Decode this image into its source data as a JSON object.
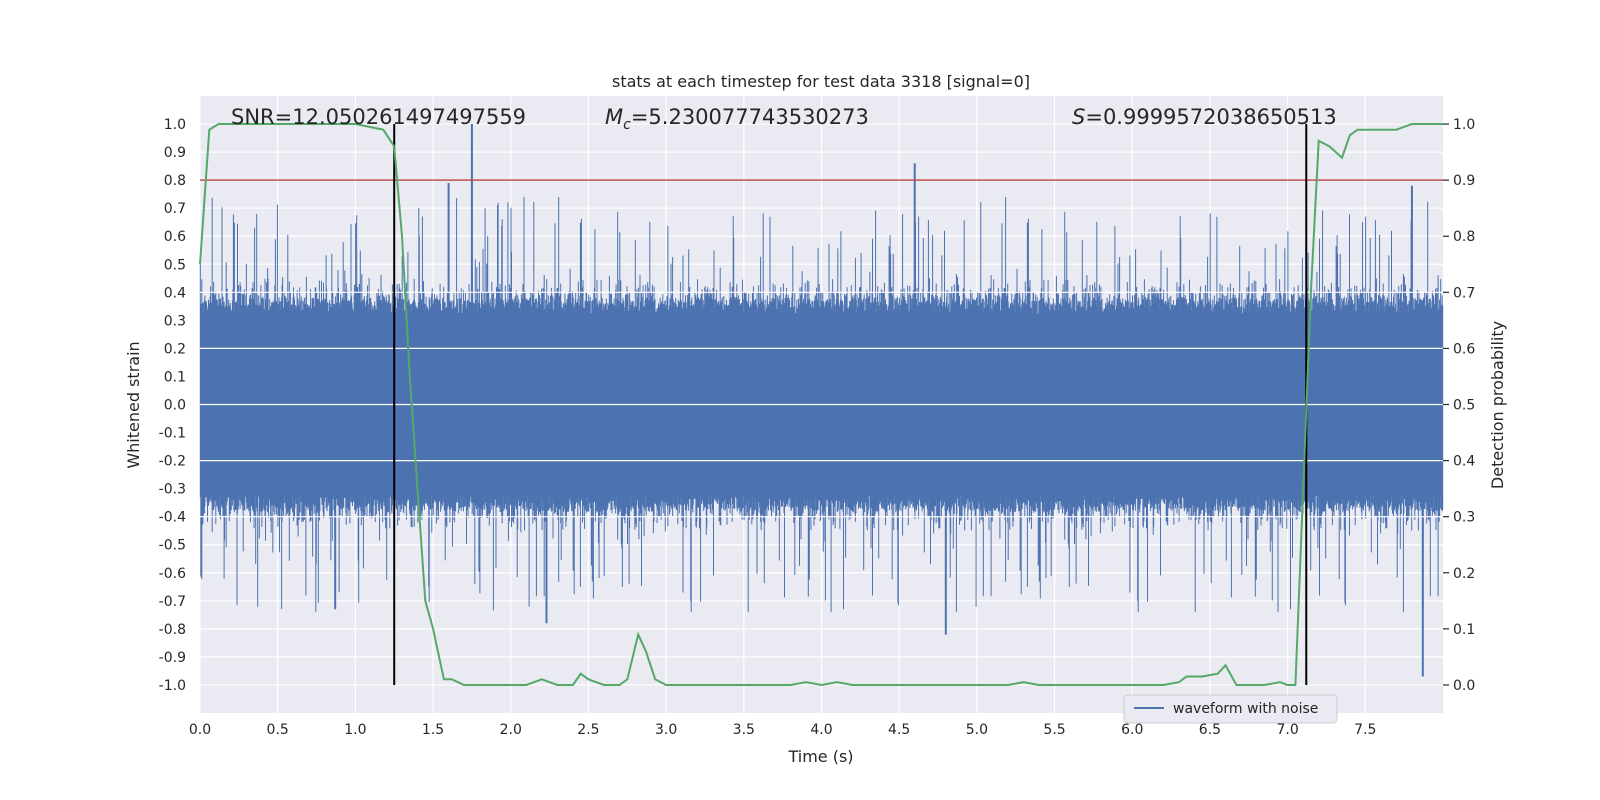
{
  "chart_data": {
    "type": "line",
    "title": "stats at each timestep for test data 3318 [signal=0]",
    "xlabel": "Time (s)",
    "ylabel": "Whitened strain",
    "y2label": "Detection probability",
    "xlim": [
      0.0,
      8.0
    ],
    "ylim": [
      -1.1,
      1.1
    ],
    "y2lim": [
      -0.05,
      1.05
    ],
    "xticks": [
      "0.0",
      "0.5",
      "1.0",
      "1.5",
      "2.0",
      "2.5",
      "3.0",
      "3.5",
      "4.0",
      "4.5",
      "5.0",
      "5.5",
      "6.0",
      "6.5",
      "7.0",
      "7.5"
    ],
    "yticks": [
      "1.0",
      "0.9",
      "0.8",
      "0.7",
      "0.6",
      "0.5",
      "0.4",
      "0.3",
      "0.2",
      "0.1",
      "0.0",
      "-0.1",
      "-0.2",
      "-0.3",
      "-0.4",
      "-0.5",
      "-0.6",
      "-0.7",
      "-0.8",
      "-0.9",
      "-1.0"
    ],
    "y2ticks": [
      "1.0",
      "0.9",
      "0.8",
      "0.7",
      "0.6",
      "0.5",
      "0.4",
      "0.3",
      "0.2",
      "0.1",
      "0.0"
    ],
    "grid": true,
    "legend_position": "lower-right",
    "annotations": {
      "snr": "SNR=12.050261497497559",
      "mc_symbol": "M",
      "mc_sub": "c",
      "mc_value": "=5.230077743530273",
      "s_symbol": "S",
      "s_value": "=0.9999572038650513"
    },
    "threshold_y2": 0.9,
    "vlines_x": [
      1.25,
      7.12
    ],
    "series": [
      {
        "name": "waveform with noise",
        "axis": "left",
        "color": "#4c72b0",
        "kind": "noise",
        "core_amplitude": 0.38,
        "spike_peaks": [
          {
            "x": 1.75,
            "y": 1.0
          },
          {
            "x": 4.6,
            "y": 0.86
          },
          {
            "x": 1.6,
            "y": 0.79
          },
          {
            "x": 7.8,
            "y": 0.78
          },
          {
            "x": 7.87,
            "y": -0.97
          },
          {
            "x": 4.8,
            "y": -0.82
          },
          {
            "x": 2.23,
            "y": -0.78
          },
          {
            "x": 0.87,
            "y": -0.73
          }
        ]
      },
      {
        "name": "detection probability",
        "axis": "right",
        "color": "#55a868",
        "x": [
          0.0,
          0.06,
          0.12,
          0.5,
          1.0,
          1.18,
          1.25,
          1.3,
          1.35,
          1.4,
          1.45,
          1.5,
          1.57,
          1.62,
          1.7,
          1.8,
          1.9,
          2.0,
          2.1,
          2.2,
          2.3,
          2.4,
          2.45,
          2.5,
          2.6,
          2.7,
          2.75,
          2.82,
          2.87,
          2.93,
          3.0,
          3.1,
          3.2,
          3.5,
          3.8,
          3.9,
          4.0,
          4.1,
          4.2,
          4.5,
          4.8,
          5.0,
          5.2,
          5.3,
          5.4,
          5.5,
          5.6,
          5.8,
          6.0,
          6.2,
          6.3,
          6.35,
          6.45,
          6.55,
          6.6,
          6.67,
          6.72,
          6.77,
          6.85,
          6.95,
          7.0,
          7.05,
          7.1,
          7.15,
          7.2,
          7.27,
          7.35,
          7.4,
          7.45,
          7.5,
          7.55,
          7.62,
          7.7,
          7.8,
          7.9,
          8.0
        ],
        "y": [
          0.75,
          0.99,
          1.0,
          1.0,
          1.0,
          0.99,
          0.96,
          0.8,
          0.55,
          0.35,
          0.15,
          0.1,
          0.01,
          0.01,
          0.0,
          0.0,
          0.0,
          0.0,
          0.0,
          0.01,
          0.0,
          0.0,
          0.02,
          0.01,
          0.0,
          0.0,
          0.01,
          0.09,
          0.06,
          0.01,
          0.0,
          0.0,
          0.0,
          0.0,
          0.0,
          0.005,
          0.0,
          0.005,
          0.0,
          0.0,
          0.0,
          0.0,
          0.0,
          0.005,
          0.0,
          0.0,
          0.0,
          0.0,
          0.0,
          0.0,
          0.005,
          0.015,
          0.015,
          0.02,
          0.035,
          0.0,
          0.0,
          0.0,
          0.0,
          0.005,
          0.0,
          0.0,
          0.35,
          0.7,
          0.97,
          0.96,
          0.94,
          0.98,
          0.99,
          0.99,
          0.99,
          0.99,
          0.99,
          1.0,
          1.0,
          1.0
        ]
      }
    ]
  }
}
